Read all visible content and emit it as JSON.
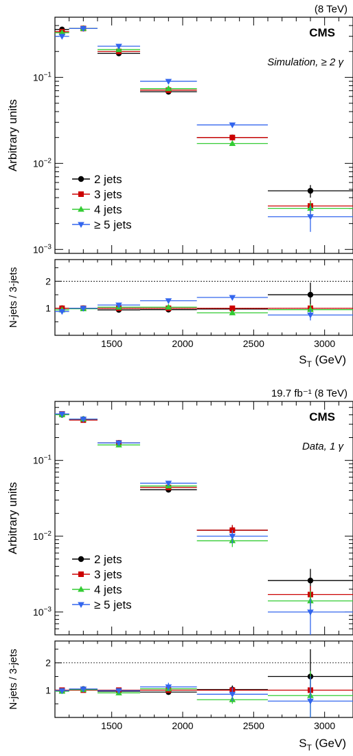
{
  "colors": {
    "2 jets": "#000000",
    "3 jets": "#cc0000",
    "4 jets": "#33cc33",
    "5 jets": "#3366ee"
  },
  "chart_data": [
    {
      "type": "scatter",
      "panel": "simulation",
      "energy_label": "(8 TeV)",
      "cms_label": "CMS",
      "sample_label": "Simulation, ≥ 2 γ",
      "ylabel": "Arbitrary units",
      "yscale": "log",
      "ylim": [
        0.0009,
        0.5
      ],
      "ytick_labels": [
        "10⁻¹",
        "10⁻²",
        "10⁻³"
      ],
      "ratio_ylabel": "N-jets / 3-jets",
      "ratio_ylim": [
        0,
        2.8
      ],
      "ratio_ticks": [
        "1",
        "2"
      ],
      "xlabel": "S_T (GeV)",
      "xlim": [
        1100,
        3200
      ],
      "xtick_labels": [
        "1500",
        "2000",
        "2500",
        "3000"
      ],
      "bins": [
        [
          1100,
          1200
        ],
        [
          1200,
          1400
        ],
        [
          1400,
          1700
        ],
        [
          1700,
          2100
        ],
        [
          2100,
          2600
        ],
        [
          2600,
          3200
        ]
      ],
      "legend": [
        "2 jets",
        "3 jets",
        "4 jets",
        "≥ 5 jets"
      ],
      "legend_position": "bottom-left",
      "series": [
        {
          "name": "2 jets",
          "color_key": "2 jets",
          "marker": "circle",
          "x": [
            1150,
            1300,
            1550,
            1900,
            2350,
            2900
          ],
          "y": [
            0.36,
            0.37,
            0.19,
            0.068,
            0.02,
            0.0048
          ],
          "yerr": [
            0.01,
            0.01,
            0.005,
            0.002,
            0.0008,
            0.0008
          ],
          "ratio": [
            1.0,
            1.0,
            0.94,
            0.95,
            0.97,
            1.5
          ],
          "ratio_err": [
            0.03,
            0.03,
            0.03,
            0.04,
            0.05,
            0.45
          ]
        },
        {
          "name": "3 jets",
          "color_key": "3 jets",
          "marker": "square",
          "x": [
            1150,
            1300,
            1550,
            1900,
            2350,
            2900
          ],
          "y": [
            0.34,
            0.37,
            0.2,
            0.071,
            0.02,
            0.0032
          ],
          "yerr": [
            0.01,
            0.01,
            0.005,
            0.002,
            0.0008,
            0.0005
          ],
          "ratio": [
            1.0,
            1.0,
            1.0,
            1.0,
            1.0,
            1.0
          ],
          "ratio_err": [
            0,
            0,
            0,
            0,
            0,
            0
          ]
        },
        {
          "name": "4 jets",
          "color_key": "4 jets",
          "marker": "triangle-up",
          "x": [
            1150,
            1300,
            1550,
            1900,
            2350,
            2900
          ],
          "y": [
            0.33,
            0.37,
            0.21,
            0.074,
            0.017,
            0.003
          ],
          "yerr": [
            0.01,
            0.01,
            0.005,
            0.002,
            0.0008,
            0.0006
          ],
          "ratio": [
            0.94,
            0.98,
            1.04,
            1.04,
            0.83,
            0.95
          ],
          "ratio_err": [
            0.03,
            0.03,
            0.03,
            0.04,
            0.05,
            0.2
          ]
        },
        {
          "name": "≥ 5 jets",
          "color_key": "5 jets",
          "marker": "triangle-down",
          "x": [
            1150,
            1300,
            1550,
            1900,
            2350,
            2900
          ],
          "y": [
            0.3,
            0.37,
            0.23,
            0.09,
            0.028,
            0.0024
          ],
          "yerr": [
            0.01,
            0.01,
            0.005,
            0.002,
            0.0008,
            0.0008
          ],
          "ratio": [
            0.88,
            1.0,
            1.12,
            1.28,
            1.4,
            0.75
          ],
          "ratio_err": [
            0.03,
            0.03,
            0.03,
            0.04,
            0.05,
            0.2
          ]
        }
      ]
    },
    {
      "type": "scatter",
      "panel": "data",
      "lumi_label": "19.7 fb⁻¹ (8 TeV)",
      "cms_label": "CMS",
      "sample_label": "Data, 1 γ",
      "ylabel": "Arbitrary units",
      "yscale": "log",
      "ylim": [
        0.0005,
        0.6
      ],
      "ytick_labels": [
        "10⁻¹",
        "10⁻²",
        "10⁻³"
      ],
      "ratio_ylabel": "N-jets / 3-jets",
      "ratio_ylim": [
        0,
        2.8
      ],
      "ratio_ticks": [
        "1",
        "2"
      ],
      "xlabel": "S_T (GeV)",
      "xlim": [
        1100,
        3200
      ],
      "xtick_labels": [
        "1500",
        "2000",
        "2500",
        "3000"
      ],
      "bins": [
        [
          1100,
          1200
        ],
        [
          1200,
          1400
        ],
        [
          1400,
          1700
        ],
        [
          1700,
          2100
        ],
        [
          2100,
          2600
        ],
        [
          2600,
          3200
        ]
      ],
      "legend": [
        "2 jets",
        "3 jets",
        "4 jets",
        "≥ 5 jets"
      ],
      "legend_position": "bottom-left",
      "series": [
        {
          "name": "2 jets",
          "color_key": "2 jets",
          "marker": "circle",
          "x": [
            1150,
            1300,
            1550,
            1900,
            2350,
            2900
          ],
          "y": [
            0.4,
            0.35,
            0.17,
            0.041,
            0.012,
            0.0026
          ],
          "yerr": [
            0.01,
            0.01,
            0.005,
            0.002,
            0.002,
            0.0011
          ],
          "ratio": [
            0.97,
            1.04,
            0.96,
            0.93,
            1.02,
            1.5
          ],
          "ratio_err": [
            0.03,
            0.03,
            0.03,
            0.05,
            0.15,
            1.0
          ]
        },
        {
          "name": "3 jets",
          "color_key": "3 jets",
          "marker": "square",
          "x": [
            1150,
            1300,
            1550,
            1900,
            2350,
            2900
          ],
          "y": [
            0.41,
            0.34,
            0.17,
            0.044,
            0.012,
            0.0017
          ],
          "yerr": [
            0.01,
            0.01,
            0.005,
            0.002,
            0.002,
            0.0005
          ],
          "ratio": [
            1.0,
            1.0,
            1.0,
            1.0,
            1.0,
            1.0
          ],
          "ratio_err": [
            0,
            0,
            0,
            0,
            0,
            0
          ]
        },
        {
          "name": "4 jets",
          "color_key": "4 jets",
          "marker": "triangle-up",
          "x": [
            1150,
            1300,
            1550,
            1900,
            2350,
            2900
          ],
          "y": [
            0.4,
            0.35,
            0.16,
            0.046,
            0.0087,
            0.0014
          ],
          "yerr": [
            0.01,
            0.01,
            0.005,
            0.002,
            0.0015,
            0.0005
          ],
          "ratio": [
            0.96,
            1.02,
            0.9,
            1.05,
            0.65,
            0.8
          ],
          "ratio_err": [
            0.03,
            0.03,
            0.03,
            0.05,
            0.15,
            0.9
          ]
        },
        {
          "name": "≥ 5 jets",
          "color_key": "5 jets",
          "marker": "triangle-down",
          "x": [
            1150,
            1300,
            1550,
            1900,
            2350,
            2900
          ],
          "y": [
            0.41,
            0.35,
            0.17,
            0.05,
            0.01,
            0.001
          ],
          "yerr": [
            0.01,
            0.01,
            0.005,
            0.002,
            0.002,
            0.0005
          ],
          "ratio": [
            0.98,
            1.04,
            0.98,
            1.12,
            0.85,
            0.6
          ],
          "ratio_err": [
            0.03,
            0.03,
            0.05,
            0.15,
            0.25,
            0.9
          ]
        }
      ]
    }
  ]
}
